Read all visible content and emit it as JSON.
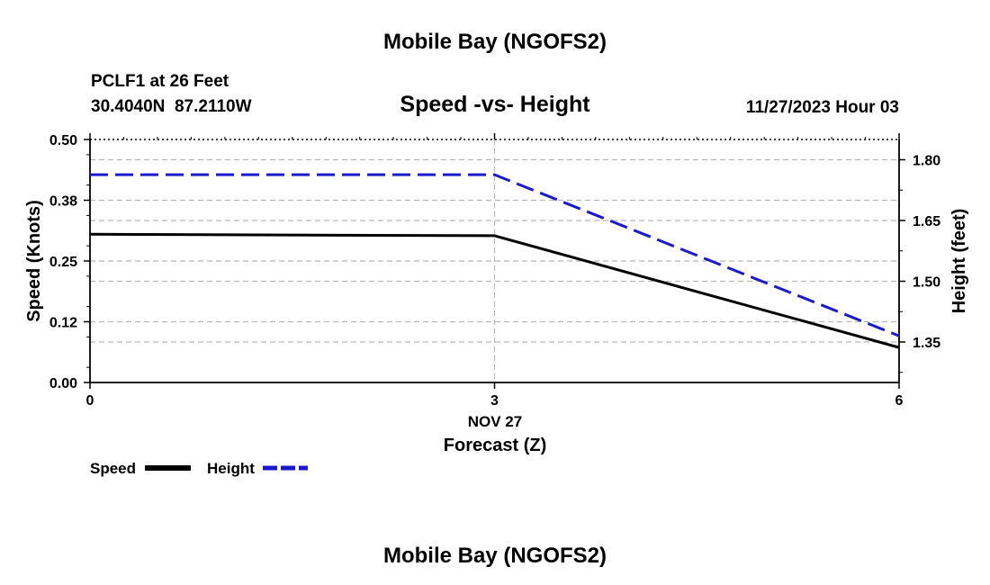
{
  "header": {
    "title": "Mobile Bay (NGOFS2)",
    "station": "PCLF1 at 26 Feet",
    "coords": "30.4040N  87.2110W",
    "subtitle": "Speed -vs- Height",
    "datetime": "11/27/2023 Hour 03"
  },
  "footer": {
    "title": "Mobile Bay (NGOFS2)"
  },
  "legend": {
    "speed_label": "Speed",
    "height_label": "Height"
  },
  "colors": {
    "speed": "#000000",
    "height": "#1a1acc",
    "grid": "#b8b8b8"
  },
  "chart_data": {
    "type": "line",
    "title": "Speed -vs- Height",
    "xlabel": "Forecast (Z)",
    "xdate_label": "NOV 27",
    "ylabel": "Speed (Knots)",
    "y2label": "Height (feet)",
    "xlim": [
      0,
      6
    ],
    "ylim": [
      0,
      0.5
    ],
    "y2lim": [
      1.25,
      1.85
    ],
    "x_ticks": [
      "0",
      "3",
      "6"
    ],
    "y_ticks": [
      "0.00",
      "0.12",
      "0.25",
      "0.38",
      "0.50"
    ],
    "y2_ticks": [
      "1.35",
      "1.50",
      "1.65",
      "1.80"
    ],
    "series": [
      {
        "name": "Speed",
        "axis": "left",
        "style": "solid",
        "x": [
          0,
          3,
          6
        ],
        "values": [
          0.305,
          0.302,
          0.072
        ]
      },
      {
        "name": "Height",
        "axis": "right",
        "style": "dashed",
        "x": [
          0,
          3,
          6
        ],
        "values": [
          1.763,
          1.763,
          1.365
        ]
      }
    ],
    "grid": true
  }
}
